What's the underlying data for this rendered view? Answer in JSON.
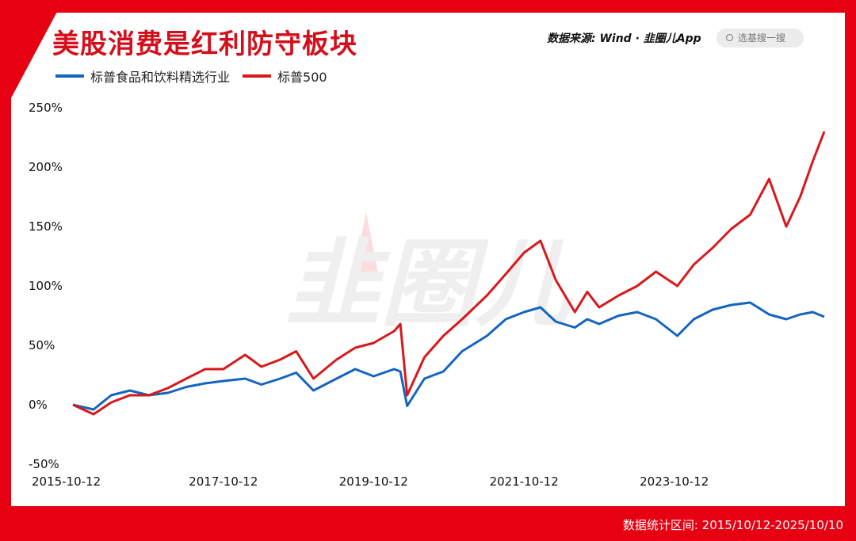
{
  "title": "美股消费是红利防守板块",
  "source": "数据来源: Wind · 韭圈儿App",
  "search_placeholder": "选基搜一搜",
  "watermark": "韭圈儿",
  "footer": "数据统计区间: 2015/10/12-2025/10/10",
  "colors": {
    "frame": "#e60012",
    "title": "#d40f1b",
    "series_blue": "#1565c0",
    "series_red": "#d7191c"
  },
  "chart_data": {
    "type": "line",
    "xlabel": "",
    "ylabel": "",
    "x_ticks": [
      "2015-10-12",
      "2017-10-12",
      "2019-10-12",
      "2021-10-12",
      "2023-10-12"
    ],
    "y_ticks": [
      "-50%",
      "0%",
      "50%",
      "100%",
      "150%",
      "200%",
      "250%"
    ],
    "ylim": [
      -50,
      250
    ],
    "xlim": [
      "2015-10-12",
      "2025-10-10"
    ],
    "grid": false,
    "legend": "top-left",
    "x": [
      "2015-10-12",
      "2016-01-20",
      "2016-04-15",
      "2016-07-15",
      "2016-10-15",
      "2017-01-15",
      "2017-04-15",
      "2017-07-15",
      "2017-10-12",
      "2018-01-26",
      "2018-04-15",
      "2018-07-15",
      "2018-10-01",
      "2018-12-24",
      "2019-04-15",
      "2019-07-15",
      "2019-10-12",
      "2020-01-20",
      "2020-02-19",
      "2020-03-23",
      "2020-06-15",
      "2020-09-15",
      "2020-12-15",
      "2021-04-15",
      "2021-07-15",
      "2021-10-12",
      "2021-12-31",
      "2022-03-15",
      "2022-06-16",
      "2022-08-15",
      "2022-10-12",
      "2023-01-15",
      "2023-04-15",
      "2023-07-15",
      "2023-10-27",
      "2024-01-15",
      "2024-04-15",
      "2024-07-15",
      "2024-10-15",
      "2025-01-15",
      "2025-04-08",
      "2025-06-15",
      "2025-08-15",
      "2025-10-10"
    ],
    "series": [
      {
        "name": "标普食品和饮料精选行业",
        "color": "#1565c0",
        "values": [
          0,
          -4,
          8,
          12,
          8,
          10,
          15,
          18,
          20,
          22,
          17,
          22,
          27,
          12,
          22,
          30,
          24,
          30,
          28,
          -1,
          22,
          28,
          45,
          58,
          72,
          78,
          82,
          70,
          65,
          72,
          68,
          75,
          78,
          72,
          58,
          72,
          80,
          84,
          86,
          76,
          72,
          76,
          78,
          74
        ]
      },
      {
        "name": "标普500",
        "color": "#d7191c",
        "values": [
          0,
          -8,
          2,
          8,
          8,
          14,
          22,
          30,
          30,
          42,
          32,
          38,
          45,
          22,
          38,
          48,
          52,
          62,
          68,
          8,
          40,
          58,
          72,
          92,
          110,
          128,
          138,
          105,
          78,
          95,
          82,
          92,
          100,
          112,
          100,
          118,
          132,
          148,
          160,
          190,
          150,
          175,
          205,
          230
        ]
      }
    ]
  }
}
